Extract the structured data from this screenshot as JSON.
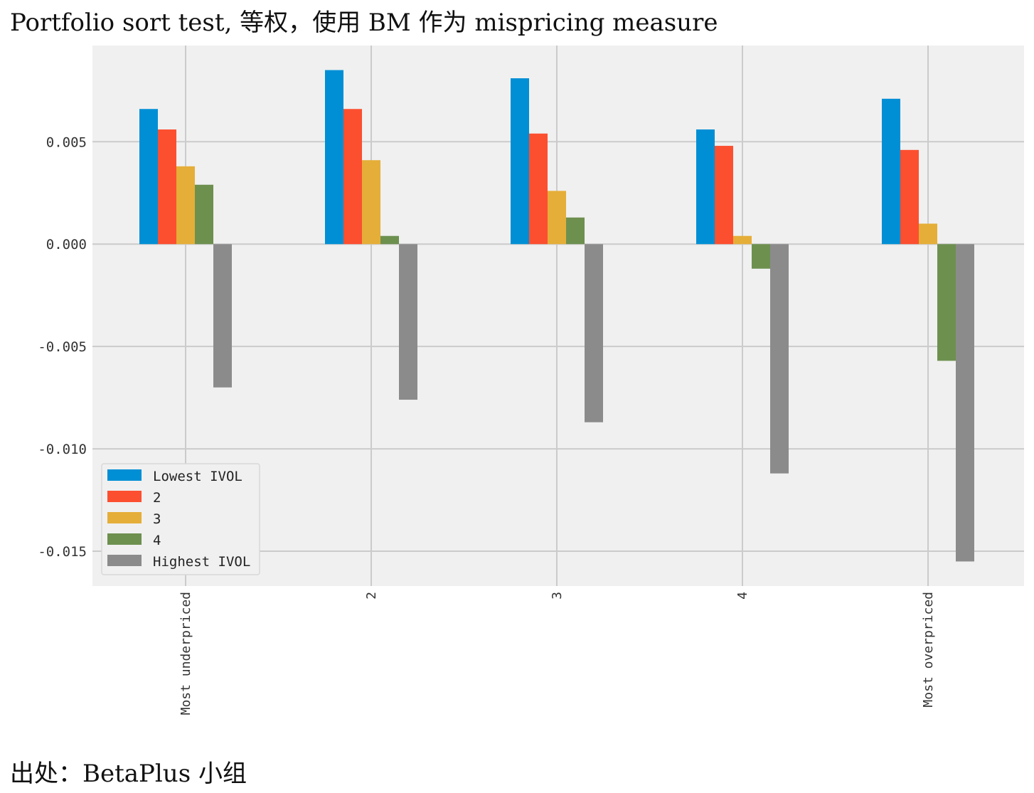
{
  "page": {
    "title": "Portfolio sort test, 等权，使用 BM 作为 mispricing measure",
    "source": "出处：BetaPlus 小组"
  },
  "chart_data": {
    "type": "bar",
    "categories": [
      "Most underpriced",
      "2",
      "3",
      "4",
      "Most overpriced"
    ],
    "series": [
      {
        "name": "Lowest IVOL",
        "color": "#008fd5",
        "values": [
          0.0066,
          0.0085,
          0.0081,
          0.0056,
          0.0071
        ]
      },
      {
        "name": "2",
        "color": "#fc4f30",
        "values": [
          0.0056,
          0.0066,
          0.0054,
          0.0048,
          0.0046
        ]
      },
      {
        "name": "3",
        "color": "#e5ae38",
        "values": [
          0.0038,
          0.0041,
          0.0026,
          0.0004,
          0.001
        ]
      },
      {
        "name": "4",
        "color": "#6d904f",
        "values": [
          0.0029,
          0.0004,
          0.0013,
          -0.0012,
          -0.0057
        ]
      },
      {
        "name": "Highest IVOL",
        "color": "#8b8b8b",
        "values": [
          -0.007,
          -0.0076,
          -0.0087,
          -0.0112,
          -0.0155
        ]
      }
    ],
    "yticks": [
      "0.005",
      "0.000",
      "-0.005",
      "-0.010",
      "-0.015"
    ],
    "ytick_values": [
      0.005,
      0.0,
      -0.005,
      -0.01,
      -0.015
    ],
    "ylim": [
      -0.0167,
      0.0097
    ],
    "grid": true,
    "legend_position": "lower-left"
  }
}
